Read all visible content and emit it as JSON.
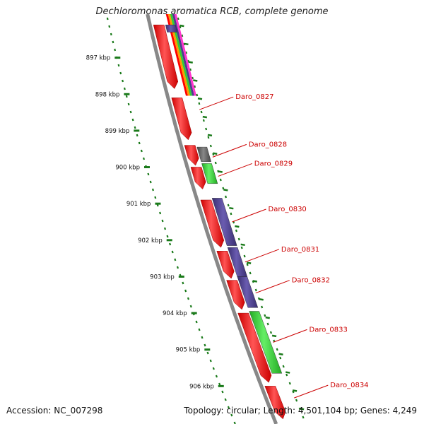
{
  "title": "Dechloromonas aromatica RCB, complete genome",
  "footer": {
    "accession": "Accession: NC_007298",
    "summary": "Topology: circular; Length: 4,501,104 bp; Genes: 4,249"
  },
  "colors": {
    "backbone": "#888888",
    "tick": "#1a7a1a",
    "gene_label": "#cc0000",
    "forward_gene": "#ff0000",
    "cds_purple": "#4b3d8c",
    "cds_green": "#33cc33",
    "cds_gray": "#666666",
    "stripe_orange": "#ff9900",
    "stripe_magenta": "#ff33cc"
  },
  "map": {
    "scale_labels": [
      "897 kbp",
      "898 kbp",
      "899 kbp",
      "900 kbp",
      "901 kbp",
      "902 kbp",
      "903 kbp",
      "904 kbp",
      "905 kbp",
      "906 kbp"
    ],
    "kbp_start": 896.0,
    "kbp_end": 907.0,
    "genes": [
      {
        "name": "Daro_0827",
        "kbp_start": 898.1,
        "kbp_end": 898.75
      },
      {
        "name": "Daro_0828",
        "kbp_start": 899.5,
        "kbp_end": 899.95
      },
      {
        "name": "Daro_0829",
        "kbp_start": 900.0,
        "kbp_end": 900.5
      },
      {
        "name": "Daro_0830",
        "kbp_start": 900.85,
        "kbp_end": 902.15
      },
      {
        "name": "Daro_0831",
        "kbp_start": 902.2,
        "kbp_end": 903.0
      },
      {
        "name": "Daro_0832",
        "kbp_start": 903.05,
        "kbp_end": 903.85
      },
      {
        "name": "Daro_0833",
        "kbp_start": 903.95,
        "kbp_end": 905.65
      },
      {
        "name": "Daro_0834",
        "kbp_start": 905.75,
        "kbp_end": 906.9
      }
    ],
    "red_features": [
      {
        "kbp_start": 896.1,
        "kbp_end": 897.85
      },
      {
        "kbp_start": 898.1,
        "kbp_end": 899.25
      },
      {
        "kbp_start": 899.4,
        "kbp_end": 899.95
      },
      {
        "kbp_start": 900.0,
        "kbp_end": 900.6
      },
      {
        "kbp_start": 900.9,
        "kbp_end": 902.2
      },
      {
        "kbp_start": 902.3,
        "kbp_end": 903.05
      },
      {
        "kbp_start": 903.1,
        "kbp_end": 903.9
      },
      {
        "kbp_start": 904.0,
        "kbp_end": 905.9
      },
      {
        "kbp_start": 906.0,
        "kbp_end": 906.9
      }
    ],
    "blue_features": [
      {
        "color": "purple",
        "kbp_start": 896.1,
        "kbp_end": 896.3
      },
      {
        "color": "gray",
        "kbp_start": 899.45,
        "kbp_end": 899.85
      },
      {
        "color": "green",
        "kbp_start": 899.9,
        "kbp_end": 900.45
      },
      {
        "color": "purple",
        "kbp_start": 900.85,
        "kbp_end": 902.15
      },
      {
        "color": "purple",
        "kbp_start": 902.2,
        "kbp_end": 903.0
      },
      {
        "color": "purple",
        "kbp_start": 903.0,
        "kbp_end": 903.85
      },
      {
        "color": "green",
        "kbp_start": 903.95,
        "kbp_end": 905.65
      }
    ],
    "stripe_colors": [
      "#ff0000",
      "#ff9900",
      "#33cc33",
      "#4b3d8c",
      "#ff33cc"
    ]
  }
}
